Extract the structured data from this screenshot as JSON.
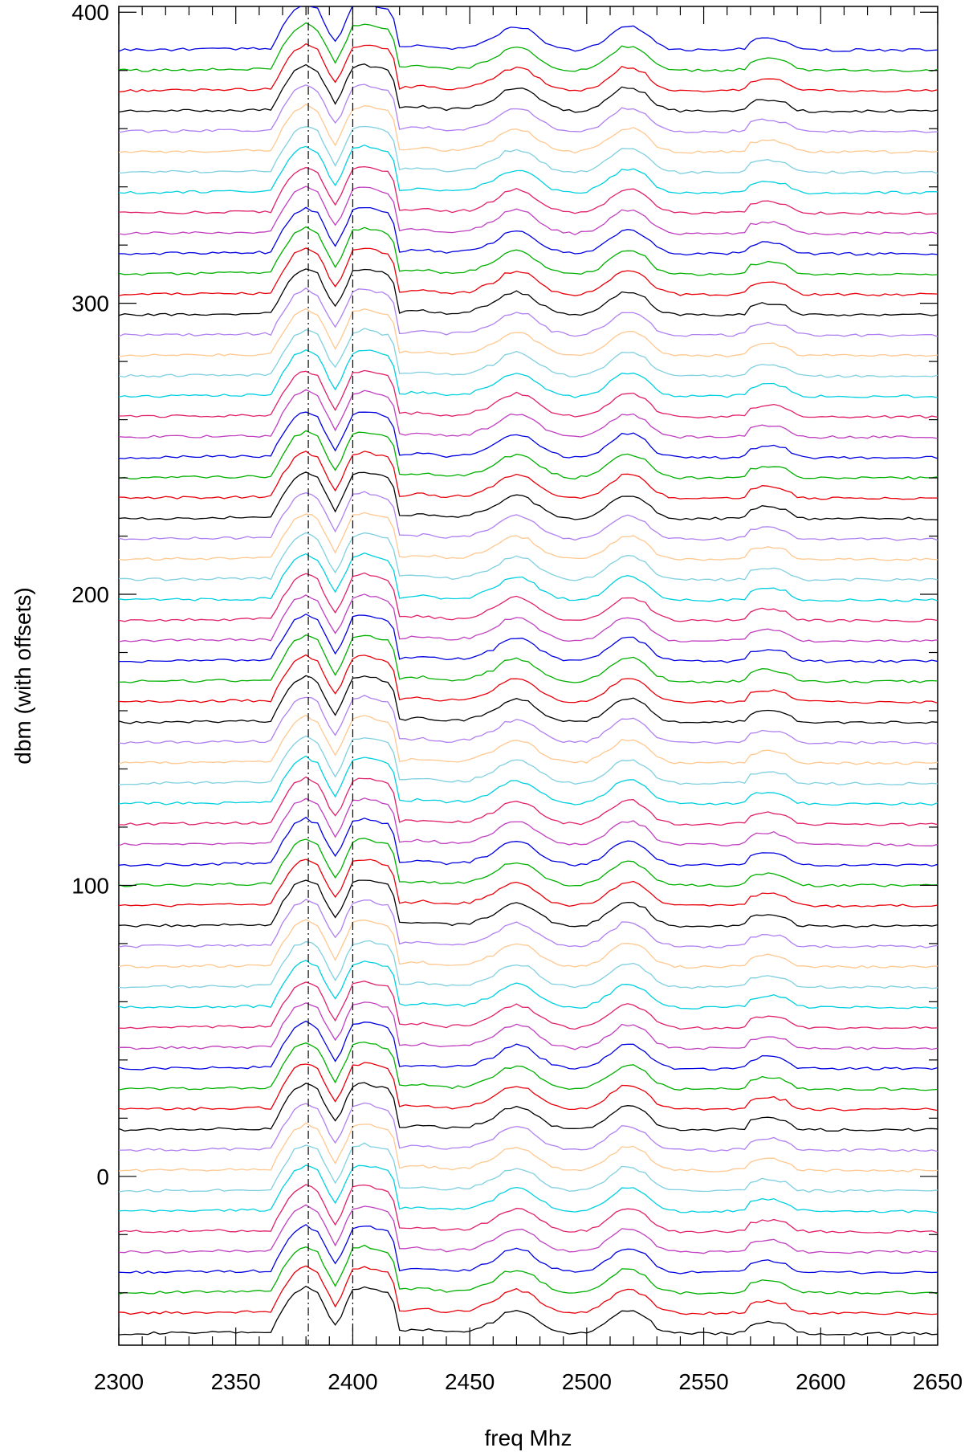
{
  "chart_data": {
    "type": "line",
    "xlabel": "freq Mhz",
    "ylabel": "dbm (with offsets)",
    "xlim": [
      2300,
      2650
    ],
    "ylim": [
      -58,
      402
    ],
    "x_ticks": [
      2300,
      2350,
      2400,
      2450,
      2500,
      2550,
      2600,
      2650
    ],
    "y_ticks": [
      0,
      100,
      200,
      300,
      400
    ],
    "x_tick_labels": [
      "2300",
      "2350",
      "2400",
      "2450",
      "2500",
      "2550",
      "2600",
      "2650"
    ],
    "y_tick_labels": [
      "0",
      "100",
      "200",
      "300",
      "400"
    ],
    "reference_lines_x": [
      2381,
      2400
    ],
    "trace_count": 64,
    "baseline_first": -54,
    "baseline_step": 7,
    "palette": [
      "#000000",
      "#e8000b",
      "#00b000",
      "#0000e0",
      "#c040c0",
      "#e0206a",
      "#00d0e0",
      "#80d0e0",
      "#ffc890",
      "#b080f0"
    ],
    "profile": {
      "x": [
        2300,
        2365,
        2370,
        2375,
        2380,
        2385,
        2390,
        2393,
        2396,
        2400,
        2405,
        2410,
        2415,
        2418,
        2420,
        2430,
        2440,
        2450,
        2460,
        2465,
        2470,
        2475,
        2480,
        2485,
        2490,
        2495,
        2500,
        2505,
        2510,
        2515,
        2520,
        2525,
        2530,
        2535,
        2540,
        2550,
        2560,
        2568,
        2570,
        2575,
        2580,
        2585,
        2590,
        2595,
        2600,
        2650
      ],
      "y": [
        0,
        0.5,
        8,
        14,
        16,
        14,
        6,
        2,
        8,
        15,
        16,
        15,
        14,
        10,
        1,
        1.5,
        0.5,
        1,
        4,
        7,
        8,
        7,
        4,
        1.5,
        0.5,
        0,
        0.5,
        2,
        5,
        8,
        8,
        6,
        2,
        0.5,
        0,
        0,
        0,
        0.5,
        3,
        4,
        4,
        3,
        0.5,
        0,
        0,
        0
      ]
    }
  }
}
